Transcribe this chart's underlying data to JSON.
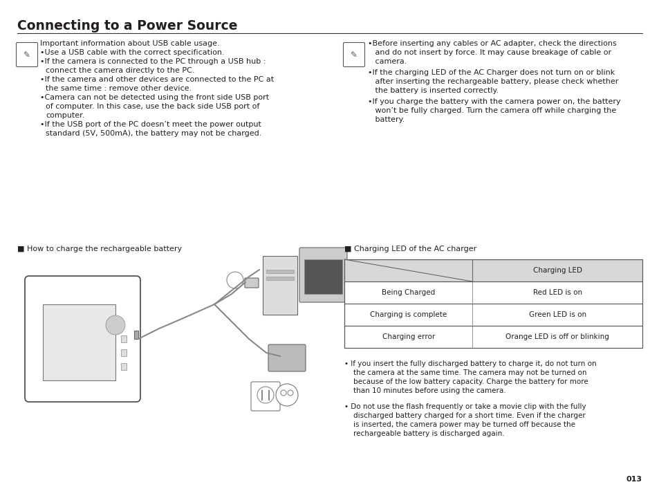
{
  "title": "Connecting to a Power Source",
  "bg_color": "#ffffff",
  "text_color": "#231f20",
  "page_number": "013",
  "font_size_title": 13.5,
  "font_size_body": 8.0,
  "font_size_small": 7.5,
  "left_note_header": "Important information about USB cable usage.",
  "left_bullets": [
    "Use a USB cable with the correct specification.",
    "If the camera is connected to the PC through a USB hub :\n    connect the camera directly to the PC.",
    "If the camera and other devices are connected to the PC at\n    the same time : remove other device.",
    "Camera can not be detected using the front side USB port\n    of computer. In this case, use the back side USB port of\n    computer.",
    "If the USB port of the PC doesn’t meet the power output\n    standard (5V, 500mA), the battery may not be charged."
  ],
  "right_note_bullet1_lines": [
    "•Before inserting any cables or AC adapter, check the directions",
    "   and do not insert by force. It may cause breakage of cable or",
    "   camera."
  ],
  "right_note_bullet2_lines": [
    "•If the charging LED of the AC Charger does not turn on or blink",
    "   after inserting the rechargeable battery, please check whether",
    "   the battery is inserted correctly."
  ],
  "right_note_bullet3_lines": [
    "•If you charge the battery with the camera power on, the battery",
    "   won’t be fully charged. Turn the camera off while charging the",
    "   battery."
  ],
  "section_left": "■ How to charge the rechargeable battery",
  "section_right": "■ Charging LED of the AC charger",
  "table_header_col2": "Charging LED",
  "table_rows": [
    [
      "Being Charged",
      "Red LED is on"
    ],
    [
      "Charging is complete",
      "Green LED is on"
    ],
    [
      "Charging error",
      "Orange LED is off or blinking"
    ]
  ],
  "bottom_bullet1_lines": [
    "• If you insert the fully discharged battery to charge it, do not turn on",
    "    the camera at the same time. The camera may not be turned on",
    "    because of the low battery capacity. Charge the battery for more",
    "    than 10 minutes before using the camera."
  ],
  "bottom_bullet2_lines": [
    "• Do not use the flash frequently or take a movie clip with the fully",
    "    discharged battery charged for a short time. Even if the charger",
    "    is inserted, the camera power may be turned off because the",
    "    rechargeable battery is discharged again."
  ]
}
